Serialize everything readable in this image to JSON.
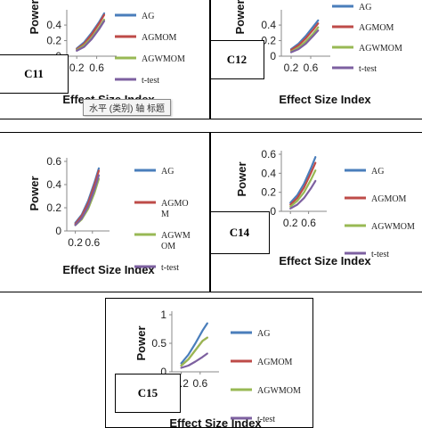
{
  "tooltip_text": "水平 (类别) 轴 标题",
  "colors": {
    "AG": "#4a7ebb",
    "AGMOM": "#be4b48",
    "AGWMOM": "#98b954",
    "t-test": "#7d60a0"
  },
  "chart_data": [
    {
      "id": "C11",
      "type": "line",
      "label": "C11",
      "xlabel": "Effect Size Index",
      "ylabel": "Power",
      "xticks": [
        "0.2",
        "0.6"
      ],
      "yticks": [
        "0",
        "0.2",
        "0.4"
      ],
      "ylim": [
        0,
        0.55
      ],
      "xlim": [
        0,
        1
      ],
      "x": [
        0.2,
        0.35,
        0.5,
        0.65,
        0.75
      ],
      "series": [
        {
          "name": "AG",
          "legend": [
            "AG"
          ],
          "values": [
            0.1,
            0.18,
            0.3,
            0.44,
            0.55
          ]
        },
        {
          "name": "AGMOM",
          "legend": [
            "AGMOM"
          ],
          "values": [
            0.09,
            0.16,
            0.28,
            0.42,
            0.53
          ]
        },
        {
          "name": "AGWMOM",
          "legend": [
            "AGWMOM"
          ],
          "values": [
            0.08,
            0.14,
            0.24,
            0.37,
            0.47
          ]
        },
        {
          "name": "t-test",
          "legend": [
            "t-test"
          ],
          "values": [
            0.07,
            0.12,
            0.22,
            0.35,
            0.45
          ]
        }
      ]
    },
    {
      "id": "C12",
      "type": "line",
      "label": "C12",
      "xlabel": "Effect Size Index",
      "ylabel": "Power",
      "xticks": [
        "0.2",
        "0.6"
      ],
      "yticks": [
        "0",
        "0.2",
        "0.4"
      ],
      "ylim": [
        0,
        0.55
      ],
      "xlim": [
        0,
        1
      ],
      "x": [
        0.2,
        0.35,
        0.5,
        0.65,
        0.75
      ],
      "series": [
        {
          "name": "AG",
          "legend": [
            "AG"
          ],
          "values": [
            0.09,
            0.16,
            0.26,
            0.38,
            0.46
          ]
        },
        {
          "name": "AGMOM",
          "legend": [
            "AGMOM"
          ],
          "values": [
            0.08,
            0.14,
            0.23,
            0.34,
            0.42
          ]
        },
        {
          "name": "AGWMOM",
          "legend": [
            "AGWMOM"
          ],
          "values": [
            0.06,
            0.11,
            0.19,
            0.29,
            0.37
          ]
        },
        {
          "name": "t-test",
          "legend": [
            "t-test"
          ],
          "values": [
            0.05,
            0.09,
            0.16,
            0.26,
            0.33
          ]
        }
      ]
    },
    {
      "id": "C13",
      "type": "line",
      "label": "C13",
      "xlabel": "Effect Size Index",
      "ylabel": "Power",
      "xticks": [
        "0.2",
        "0.6"
      ],
      "yticks": [
        "0",
        "0.2",
        "0.4",
        "0.6"
      ],
      "ylim": [
        0,
        0.6
      ],
      "xlim": [
        0,
        1
      ],
      "x": [
        0.2,
        0.35,
        0.5,
        0.65,
        0.75
      ],
      "series": [
        {
          "name": "AG",
          "legend": [
            "AG"
          ],
          "values": [
            0.07,
            0.14,
            0.26,
            0.42,
            0.54
          ]
        },
        {
          "name": "AGMOM",
          "legend": [
            "AGMO",
            "M"
          ],
          "values": [
            0.06,
            0.13,
            0.24,
            0.4,
            0.52
          ]
        },
        {
          "name": "AGWMOM",
          "legend": [
            "AGWM",
            "OM"
          ],
          "values": [
            0.05,
            0.1,
            0.19,
            0.33,
            0.45
          ]
        },
        {
          "name": "t-test",
          "legend": [
            "t-test"
          ],
          "values": [
            0.05,
            0.11,
            0.21,
            0.36,
            0.48
          ]
        }
      ]
    },
    {
      "id": "C14",
      "type": "line",
      "label": "C14",
      "xlabel": "Effect Size Index",
      "ylabel": "Power",
      "xticks": [
        "0.2",
        "0.6"
      ],
      "yticks": [
        "0",
        "0.2",
        "0.4",
        "0.6"
      ],
      "ylim": [
        0,
        0.6
      ],
      "xlim": [
        0,
        1
      ],
      "x": [
        0.2,
        0.35,
        0.5,
        0.65,
        0.75
      ],
      "series": [
        {
          "name": "AG",
          "legend": [
            "AG"
          ],
          "values": [
            0.09,
            0.17,
            0.29,
            0.45,
            0.57
          ]
        },
        {
          "name": "AGMOM",
          "legend": [
            "AGMOM"
          ],
          "values": [
            0.07,
            0.14,
            0.25,
            0.4,
            0.51
          ]
        },
        {
          "name": "AGWMOM",
          "legend": [
            "AGWMOM"
          ],
          "values": [
            0.05,
            0.11,
            0.2,
            0.33,
            0.43
          ]
        },
        {
          "name": "t-test",
          "legend": [
            "t-test"
          ],
          "values": [
            0.03,
            0.07,
            0.14,
            0.24,
            0.32
          ]
        }
      ]
    },
    {
      "id": "C15",
      "type": "line",
      "label": "C15",
      "xlabel": "Effect Size Index",
      "ylabel": "Power",
      "xticks": [
        "0.2",
        "0.6"
      ],
      "yticks": [
        "0",
        "0.5",
        "1"
      ],
      "ylim": [
        0,
        1
      ],
      "xlim": [
        0,
        1
      ],
      "x": [
        0.2,
        0.35,
        0.5,
        0.65,
        0.75
      ],
      "series": [
        {
          "name": "AG",
          "legend": [
            "AG"
          ],
          "values": [
            0.15,
            0.3,
            0.5,
            0.72,
            0.85
          ]
        },
        {
          "name": "AGMOM",
          "legend": [
            "AGMOM"
          ],
          "values": [
            0.11,
            0.22,
            0.38,
            0.54,
            0.6
          ]
        },
        {
          "name": "AGWMOM",
          "legend": [
            "AGWMOM"
          ],
          "values": [
            0.11,
            0.22,
            0.38,
            0.54,
            0.6
          ]
        },
        {
          "name": "t-test",
          "legend": [
            "t-test"
          ],
          "values": [
            0.07,
            0.11,
            0.18,
            0.26,
            0.32
          ]
        }
      ]
    }
  ]
}
